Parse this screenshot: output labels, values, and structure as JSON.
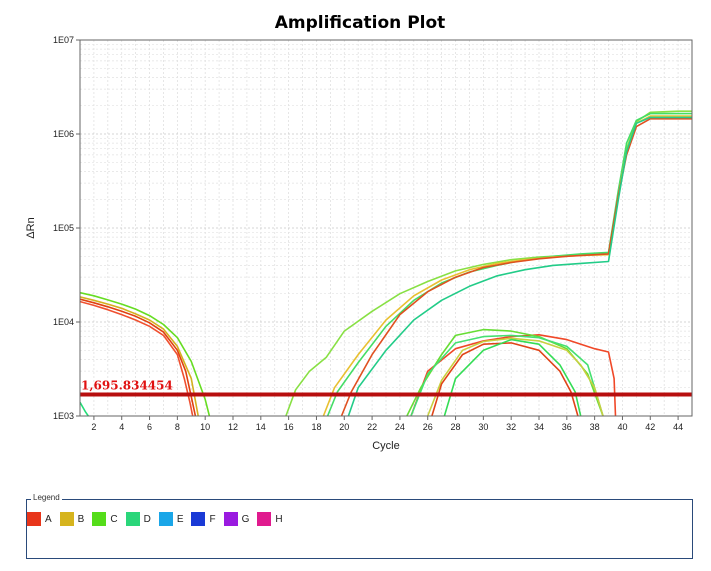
{
  "chart_data": {
    "type": "line",
    "title": "Amplification Plot",
    "xlabel": "Cycle",
    "ylabel": "ΔRn",
    "yscale": "log",
    "xlim": [
      1,
      45
    ],
    "ylim": [
      1000,
      10000000
    ],
    "x_ticks": [
      "2",
      "4",
      "6",
      "8",
      "10",
      "12",
      "14",
      "16",
      "18",
      "20",
      "22",
      "24",
      "26",
      "28",
      "30",
      "32",
      "34",
      "36",
      "38",
      "40",
      "42",
      "44"
    ],
    "y_ticks": [
      "1E03",
      "1E04",
      "1E05",
      "1E06",
      "1E07"
    ],
    "grid": true,
    "threshold": {
      "value": 1695.834454,
      "label": "1,695.834454",
      "color": "#b80f0f"
    },
    "series": [
      {
        "color": "#e04010",
        "points": [
          [
            1,
            17500
          ],
          [
            2,
            16000
          ],
          [
            3,
            14500
          ],
          [
            4,
            13000
          ],
          [
            5,
            11500
          ],
          [
            6,
            9800
          ],
          [
            7,
            7800
          ],
          [
            8,
            5000
          ],
          [
            8.6,
            3000
          ],
          [
            9,
            1600
          ],
          [
            9.3,
            1000
          ]
        ]
      },
      {
        "color": "#f05030",
        "points": [
          [
            1,
            16500
          ],
          [
            2,
            15000
          ],
          [
            3,
            13500
          ],
          [
            4,
            12000
          ],
          [
            5,
            10500
          ],
          [
            6,
            9000
          ],
          [
            7,
            7200
          ],
          [
            8,
            4500
          ],
          [
            8.5,
            2500
          ],
          [
            8.9,
            1400
          ],
          [
            9.1,
            1000
          ]
        ]
      },
      {
        "color": "#d4b020",
        "points": [
          [
            1,
            18500
          ],
          [
            2,
            17000
          ],
          [
            3,
            15500
          ],
          [
            4,
            14000
          ],
          [
            5,
            12200
          ],
          [
            6,
            10500
          ],
          [
            7,
            8400
          ],
          [
            8,
            5500
          ],
          [
            9,
            2500
          ],
          [
            9.5,
            1000
          ]
        ]
      },
      {
        "color": "#66dd22",
        "points": [
          [
            1,
            20500
          ],
          [
            2,
            19000
          ],
          [
            3,
            17200
          ],
          [
            4,
            15500
          ],
          [
            5,
            13700
          ],
          [
            6,
            11700
          ],
          [
            7,
            9400
          ],
          [
            8,
            6800
          ],
          [
            9,
            3800
          ],
          [
            10,
            1500
          ],
          [
            10.3,
            1000
          ]
        ]
      },
      {
        "color": "#22dd77",
        "points": [
          [
            1,
            1400
          ],
          [
            1.4,
            1100
          ],
          [
            1.6,
            1000
          ]
        ]
      },
      {
        "color": "#88e044",
        "points": [
          [
            15.8,
            1000
          ],
          [
            16.5,
            1900
          ],
          [
            17.5,
            3000
          ],
          [
            18.7,
            4200
          ],
          [
            20,
            8000
          ],
          [
            22,
            13000
          ],
          [
            24,
            20000
          ],
          [
            26,
            27000
          ],
          [
            28,
            35000
          ],
          [
            30,
            41000
          ],
          [
            32,
            46000
          ],
          [
            34,
            49000
          ],
          [
            36,
            51000
          ],
          [
            38,
            52000
          ],
          [
            39,
            53000
          ],
          [
            39.7,
            230000
          ],
          [
            40.3,
            700000
          ],
          [
            41,
            1350000
          ],
          [
            42,
            1700000
          ],
          [
            44,
            1750000
          ],
          [
            45,
            1750000
          ]
        ]
      },
      {
        "color": "#44dd66",
        "points": [
          [
            18.8,
            1000
          ],
          [
            19.5,
            1800
          ],
          [
            21,
            3700
          ],
          [
            23,
            9000
          ],
          [
            25,
            17000
          ],
          [
            27,
            26000
          ],
          [
            29,
            34000
          ],
          [
            31,
            40000
          ],
          [
            33,
            46000
          ],
          [
            35,
            50000
          ],
          [
            37,
            53000
          ],
          [
            39,
            55000
          ],
          [
            39.7,
            250000
          ],
          [
            40.3,
            800000
          ],
          [
            41,
            1400000
          ],
          [
            42,
            1650000
          ],
          [
            45,
            1650000
          ]
        ]
      },
      {
        "color": "#e8c030",
        "points": [
          [
            18.5,
            1000
          ],
          [
            19.3,
            2000
          ],
          [
            21,
            4500
          ],
          [
            23,
            10500
          ],
          [
            25,
            19000
          ],
          [
            27,
            28000
          ],
          [
            29,
            36000
          ],
          [
            31,
            42000
          ],
          [
            33,
            46000
          ],
          [
            35,
            49000
          ],
          [
            37,
            51000
          ],
          [
            39,
            52000
          ],
          [
            39.7,
            220000
          ],
          [
            40.3,
            650000
          ],
          [
            41,
            1300000
          ],
          [
            42,
            1550000
          ],
          [
            45,
            1550000
          ]
        ]
      },
      {
        "color": "#e05020",
        "points": [
          [
            19.8,
            1000
          ],
          [
            20.5,
            1800
          ],
          [
            22,
            4500
          ],
          [
            24,
            12000
          ],
          [
            26,
            21000
          ],
          [
            28,
            30000
          ],
          [
            30,
            38000
          ],
          [
            32,
            43000
          ],
          [
            34,
            47000
          ],
          [
            36,
            50000
          ],
          [
            38,
            52000
          ],
          [
            39,
            53000
          ],
          [
            39.7,
            220000
          ],
          [
            40.3,
            600000
          ],
          [
            41,
            1200000
          ],
          [
            42,
            1450000
          ],
          [
            45,
            1450000
          ]
        ]
      },
      {
        "color": "#22cc88",
        "points": [
          [
            20.3,
            1000
          ],
          [
            21,
            2000
          ],
          [
            23,
            5000
          ],
          [
            25,
            10500
          ],
          [
            27,
            17000
          ],
          [
            29,
            24000
          ],
          [
            31,
            31000
          ],
          [
            33,
            36000
          ],
          [
            35,
            40000
          ],
          [
            37,
            42000
          ],
          [
            39,
            44000
          ],
          [
            39.7,
            200000
          ],
          [
            40.3,
            650000
          ],
          [
            41,
            1300000
          ],
          [
            42,
            1500000
          ],
          [
            45,
            1500000
          ]
        ]
      },
      {
        "color": "#f04828",
        "points": [
          [
            24.8,
            1000
          ],
          [
            26,
            3000
          ],
          [
            28,
            5200
          ],
          [
            30,
            6300
          ],
          [
            32,
            7000
          ],
          [
            34,
            7300
          ],
          [
            36,
            6500
          ],
          [
            38,
            5200
          ],
          [
            39,
            4800
          ],
          [
            39.4,
            2500
          ],
          [
            39.5,
            1000
          ]
        ]
      },
      {
        "color": "#66dd33",
        "points": [
          [
            24.5,
            1000
          ],
          [
            25.5,
            2000
          ],
          [
            27,
            4500
          ],
          [
            28,
            7200
          ],
          [
            30,
            8300
          ],
          [
            32,
            8000
          ],
          [
            34,
            7000
          ],
          [
            36,
            5200
          ],
          [
            37.5,
            2800
          ],
          [
            38.6,
            1000
          ]
        ]
      },
      {
        "color": "#44e070",
        "points": [
          [
            24.8,
            1000
          ],
          [
            26,
            2800
          ],
          [
            28,
            6000
          ],
          [
            30,
            7000
          ],
          [
            32,
            7200
          ],
          [
            34,
            6800
          ],
          [
            36,
            5500
          ],
          [
            37.5,
            3500
          ],
          [
            38.6,
            1000
          ]
        ]
      },
      {
        "color": "#c8d040",
        "points": [
          [
            26,
            1000
          ],
          [
            27,
            2400
          ],
          [
            28.5,
            5000
          ],
          [
            30,
            6200
          ],
          [
            32,
            6700
          ],
          [
            34,
            6300
          ],
          [
            36,
            5000
          ],
          [
            37,
            3500
          ],
          [
            38,
            2000
          ],
          [
            38.6,
            1000
          ]
        ]
      },
      {
        "color": "#e04418",
        "points": [
          [
            26.3,
            1000
          ],
          [
            27,
            2200
          ],
          [
            28.5,
            4500
          ],
          [
            30,
            5800
          ],
          [
            32,
            6000
          ],
          [
            34,
            5000
          ],
          [
            35.5,
            3000
          ],
          [
            36.3,
            1800
          ],
          [
            36.8,
            1000
          ]
        ]
      },
      {
        "color": "#33dd55",
        "points": [
          [
            27.2,
            1000
          ],
          [
            28,
            2500
          ],
          [
            30,
            5000
          ],
          [
            32,
            6500
          ],
          [
            34,
            5800
          ],
          [
            35.5,
            3500
          ],
          [
            36.6,
            1800
          ],
          [
            37,
            1000
          ]
        ]
      }
    ],
    "legend": {
      "title": "Legend",
      "placement": "bottom",
      "entries": [
        {
          "label": "A",
          "color": "#e8351a"
        },
        {
          "label": "B",
          "color": "#d6b41e"
        },
        {
          "label": "C",
          "color": "#55dd1a"
        },
        {
          "label": "D",
          "color": "#2ad67a"
        },
        {
          "label": "E",
          "color": "#1aa6e8"
        },
        {
          "label": "F",
          "color": "#1a3ad6"
        },
        {
          "label": "G",
          "color": "#9a1ae0"
        },
        {
          "label": "H",
          "color": "#e01a8e"
        }
      ]
    }
  }
}
